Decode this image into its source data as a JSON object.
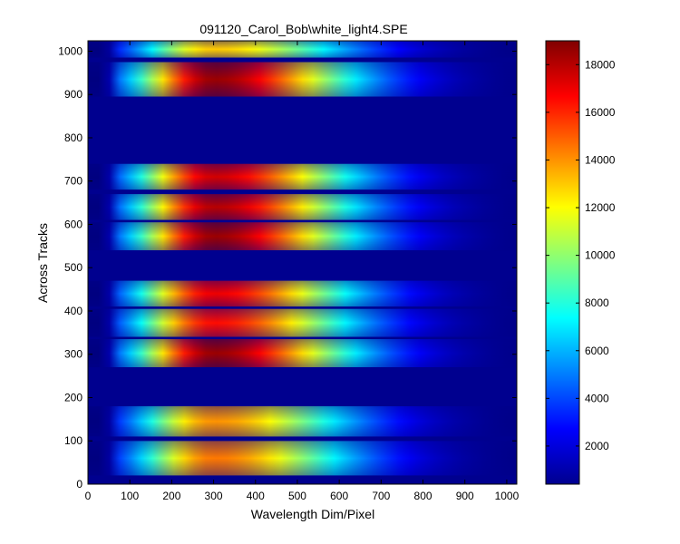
{
  "chart_data": {
    "type": "heatmap",
    "title": "091120_Carol_Bob\\white_light4.SPE",
    "xlabel": "Wavelength Dim/Pixel",
    "ylabel": "Across Tracks",
    "xlim": [
      0,
      1024
    ],
    "ylim": [
      0,
      1024
    ],
    "x_ticks": [
      "0",
      "100",
      "200",
      "300",
      "400",
      "500",
      "600",
      "700",
      "800",
      "900",
      "1000"
    ],
    "y_ticks": [
      "0",
      "100",
      "200",
      "300",
      "400",
      "500",
      "600",
      "700",
      "800",
      "900",
      "1000"
    ],
    "colormap": "jet",
    "colorbar": {
      "range": [
        400,
        19000
      ],
      "ticks": [
        "2000",
        "4000",
        "6000",
        "8000",
        "10000",
        "12000",
        "14000",
        "16000",
        "18000"
      ]
    },
    "background_value": 400,
    "illuminated_x_range": [
      45,
      1024
    ],
    "peak_x": 300,
    "tracks": [
      {
        "y_range": [
          20,
          100
        ],
        "peak": 14500
      },
      {
        "y_range": [
          110,
          180
        ],
        "peak": 14000
      },
      {
        "y_range": [
          270,
          335
        ],
        "peak": 18500
      },
      {
        "y_range": [
          340,
          405
        ],
        "peak": 16500
      },
      {
        "y_range": [
          410,
          470
        ],
        "peak": 17000
      },
      {
        "y_range": [
          540,
          605
        ],
        "peak": 18500
      },
      {
        "y_range": [
          610,
          670
        ],
        "peak": 18000
      },
      {
        "y_range": [
          680,
          740
        ],
        "peak": 17500
      },
      {
        "y_range": [
          895,
          975
        ],
        "peak": 18500
      },
      {
        "y_range": [
          985,
          1024
        ],
        "peak": 13000
      }
    ]
  }
}
